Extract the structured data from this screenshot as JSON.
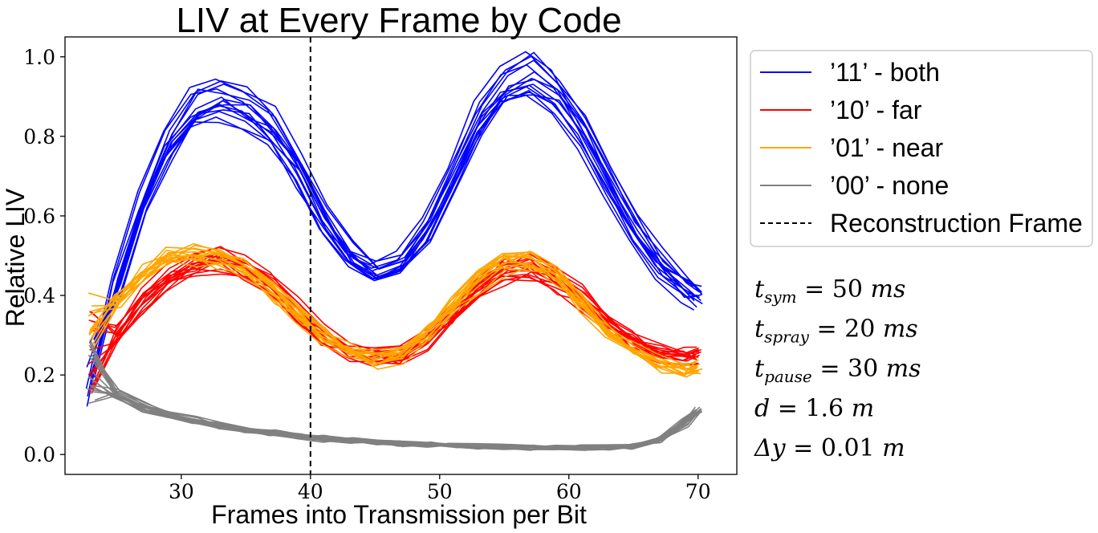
{
  "chart_data": {
    "type": "line",
    "title": "LIV at Every Frame by Code",
    "xlabel": "Frames into Transmission per Bit",
    "ylabel": "Relative LIV",
    "xlim": [
      21,
      73
    ],
    "ylim": [
      -0.05,
      1.05
    ],
    "xticks": [
      30,
      40,
      50,
      60,
      70
    ],
    "xtick_labels": [
      "30",
      "40",
      "50",
      "60",
      "70"
    ],
    "yticks": [
      0.0,
      0.2,
      0.4,
      0.6,
      0.8,
      1.0
    ],
    "ytick_labels": [
      "0.0",
      "0.2",
      "0.4",
      "0.6",
      "0.8",
      "1.0"
    ],
    "grid": false,
    "legend_position": "outside-right-top",
    "reference_line": {
      "x": 40,
      "style": "dashed",
      "color": "#000000",
      "name": "Reconstruction Frame"
    },
    "x": [
      23,
      25,
      27,
      29,
      31,
      33,
      35,
      37,
      39,
      41,
      43,
      45,
      47,
      49,
      51,
      53,
      55,
      57,
      59,
      61,
      63,
      65,
      67,
      69,
      70
    ],
    "series": [
      {
        "name": "’11’ - both",
        "color": "#0000ff",
        "count": 15,
        "values": [
          0.22,
          0.42,
          0.63,
          0.78,
          0.87,
          0.89,
          0.87,
          0.82,
          0.72,
          0.59,
          0.5,
          0.46,
          0.48,
          0.56,
          0.7,
          0.84,
          0.93,
          0.95,
          0.91,
          0.81,
          0.69,
          0.57,
          0.48,
          0.42,
          0.4
        ]
      },
      {
        "name": "’10’ - far",
        "color": "#ff0000",
        "count": 16,
        "values": [
          0.25,
          0.3,
          0.38,
          0.44,
          0.47,
          0.49,
          0.47,
          0.42,
          0.36,
          0.3,
          0.26,
          0.245,
          0.25,
          0.29,
          0.35,
          0.42,
          0.46,
          0.47,
          0.44,
          0.39,
          0.33,
          0.28,
          0.25,
          0.24,
          0.25
        ]
      },
      {
        "name": "’01’ - near",
        "color": "#ffa500",
        "count": 14,
        "values": [
          0.3,
          0.38,
          0.45,
          0.49,
          0.5,
          0.49,
          0.46,
          0.41,
          0.35,
          0.3,
          0.26,
          0.24,
          0.25,
          0.3,
          0.37,
          0.44,
          0.48,
          0.48,
          0.45,
          0.38,
          0.31,
          0.26,
          0.23,
          0.21,
          0.22
        ]
      },
      {
        "name": "’00’ - none",
        "color": "#808080",
        "count": 18,
        "values": [
          0.2,
          0.15,
          0.12,
          0.1,
          0.085,
          0.072,
          0.062,
          0.054,
          0.046,
          0.04,
          0.035,
          0.03,
          0.027,
          0.024,
          0.022,
          0.02,
          0.019,
          0.018,
          0.017,
          0.017,
          0.017,
          0.02,
          0.035,
          0.08,
          0.11
        ]
      }
    ],
    "annotations": [
      "t_{sym} = 50 ms",
      "t_{spray} = 20 ms",
      "t_{pause} = 30 ms",
      "d = 1.6 m",
      "Δy = 0.01 m"
    ]
  },
  "legend": {
    "items": [
      {
        "label": "’11’ - both",
        "color": "#0000ff",
        "style": "solid"
      },
      {
        "label": "’10’ - far",
        "color": "#ff0000",
        "style": "solid"
      },
      {
        "label": "’01’ - near",
        "color": "#ffa500",
        "style": "solid"
      },
      {
        "label": "’00’ - none",
        "color": "#808080",
        "style": "solid"
      },
      {
        "label": "Reconstruction Frame",
        "color": "#000000",
        "style": "dashed"
      }
    ]
  },
  "parameters": [
    {
      "var": "t",
      "sub": "sym",
      "value": "= 50",
      "unit": "ms"
    },
    {
      "var": "t",
      "sub": "spray",
      "value": "= 20",
      "unit": "ms"
    },
    {
      "var": "t",
      "sub": "pause",
      "value": "= 30",
      "unit": "ms"
    },
    {
      "var": "d",
      "sub": "",
      "value": "= 1.6",
      "unit": "m"
    },
    {
      "var": "Δy",
      "sub": "",
      "value": "= 0.01",
      "unit": "m"
    }
  ]
}
